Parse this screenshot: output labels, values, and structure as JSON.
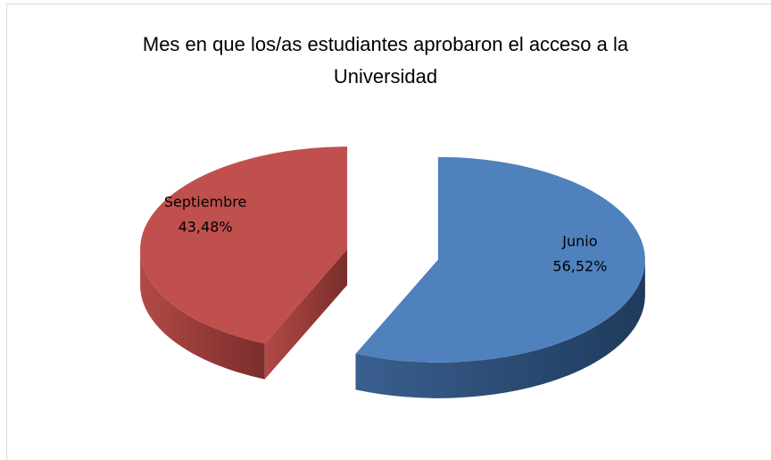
{
  "chart_data": {
    "type": "pie",
    "title": "Mes en que los/as estudiantes aprobaron el acceso a la Universidad",
    "categories": [
      "Junio",
      "Septiembre"
    ],
    "values": [
      56.52,
      43.48
    ],
    "value_labels": [
      "56,52%",
      "43,48%"
    ],
    "colors": [
      "#4f81bd",
      "#c0504d"
    ]
  }
}
